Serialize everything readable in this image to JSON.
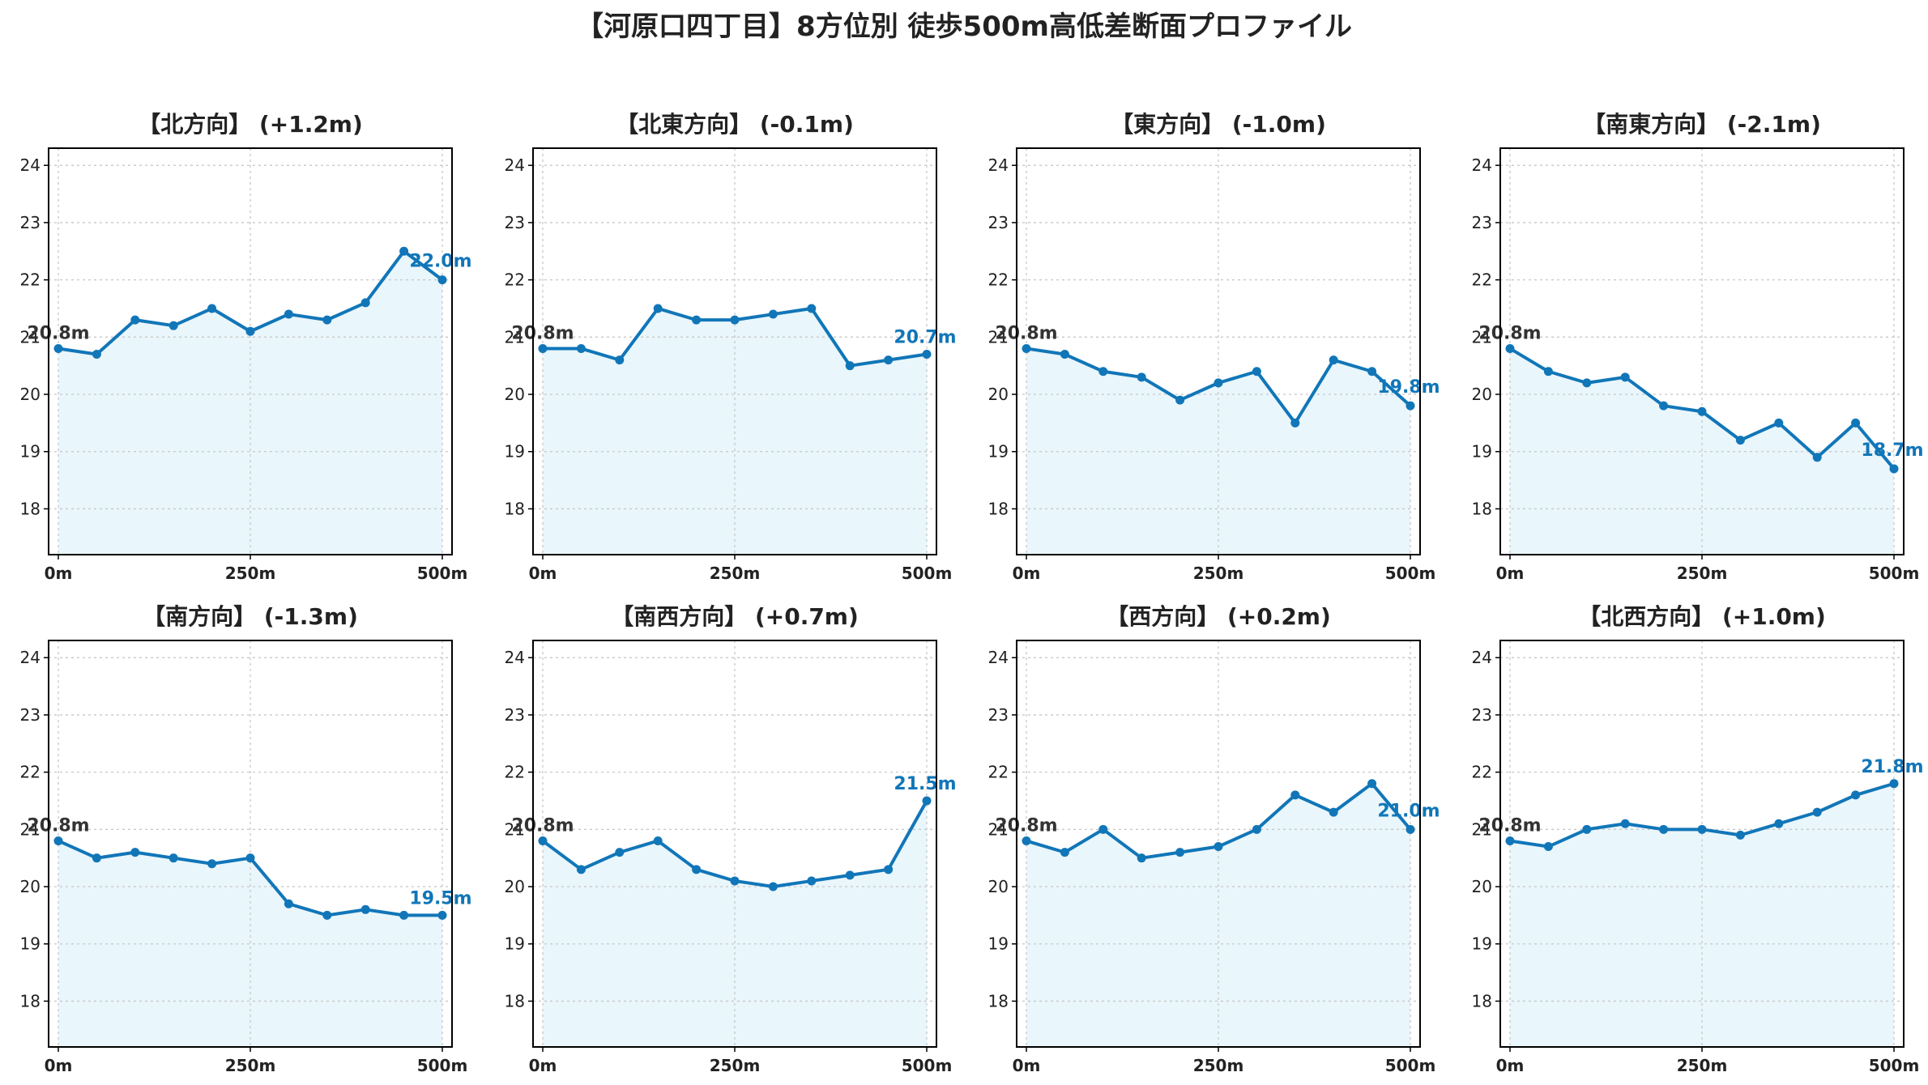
{
  "title": "【河原口四丁目】8方位別 徒歩500m高低差断面プロファイル",
  "colors": {
    "line": "#1176b8",
    "area": "#e8f5fb",
    "start_label": "#333333"
  },
  "chart_data": [
    {
      "type": "line",
      "title": "【北方向】 (+1.2m)",
      "x": [
        0,
        50,
        100,
        150,
        200,
        250,
        300,
        350,
        400,
        450,
        500
      ],
      "values": [
        20.8,
        20.7,
        21.3,
        21.2,
        21.5,
        21.1,
        21.4,
        21.3,
        21.6,
        22.5,
        22.0
      ],
      "start_label": "20.8m",
      "end_label": "22.0m",
      "xticks": [
        "0m",
        "250m",
        "500m"
      ],
      "yticks": [
        18,
        19,
        20,
        21,
        22,
        23,
        24
      ],
      "xlim": [
        0,
        500
      ],
      "ylim": [
        17.2,
        24.3
      ],
      "grid": true
    },
    {
      "type": "line",
      "title": "【北東方向】 (-0.1m)",
      "x": [
        0,
        50,
        100,
        150,
        200,
        250,
        300,
        350,
        400,
        450,
        500
      ],
      "values": [
        20.8,
        20.8,
        20.6,
        21.5,
        21.3,
        21.3,
        21.4,
        21.5,
        20.5,
        20.6,
        20.7
      ],
      "start_label": "20.8m",
      "end_label": "20.7m",
      "xticks": [
        "0m",
        "250m",
        "500m"
      ],
      "yticks": [
        18,
        19,
        20,
        21,
        22,
        23,
        24
      ],
      "xlim": [
        0,
        500
      ],
      "ylim": [
        17.2,
        24.3
      ],
      "grid": true
    },
    {
      "type": "line",
      "title": "【東方向】 (-1.0m)",
      "x": [
        0,
        50,
        100,
        150,
        200,
        250,
        300,
        350,
        400,
        450,
        500
      ],
      "values": [
        20.8,
        20.7,
        20.4,
        20.3,
        19.9,
        20.2,
        20.4,
        19.5,
        20.6,
        20.4,
        19.8
      ],
      "start_label": "20.8m",
      "end_label": "19.8m",
      "xticks": [
        "0m",
        "250m",
        "500m"
      ],
      "yticks": [
        18,
        19,
        20,
        21,
        22,
        23,
        24
      ],
      "xlim": [
        0,
        500
      ],
      "ylim": [
        17.2,
        24.3
      ],
      "grid": true
    },
    {
      "type": "line",
      "title": "【南東方向】 (-2.1m)",
      "x": [
        0,
        50,
        100,
        150,
        200,
        250,
        300,
        350,
        400,
        450,
        500
      ],
      "values": [
        20.8,
        20.4,
        20.2,
        20.3,
        19.8,
        19.7,
        19.2,
        19.5,
        18.9,
        19.5,
        18.7
      ],
      "start_label": "20.8m",
      "end_label": "18.7m",
      "xticks": [
        "0m",
        "250m",
        "500m"
      ],
      "yticks": [
        18,
        19,
        20,
        21,
        22,
        23,
        24
      ],
      "xlim": [
        0,
        500
      ],
      "ylim": [
        17.2,
        24.3
      ],
      "grid": true
    },
    {
      "type": "line",
      "title": "【南方向】 (-1.3m)",
      "x": [
        0,
        50,
        100,
        150,
        200,
        250,
        300,
        350,
        400,
        450,
        500
      ],
      "values": [
        20.8,
        20.5,
        20.6,
        20.5,
        20.4,
        20.5,
        19.7,
        19.5,
        19.6,
        19.5,
        19.5
      ],
      "start_label": "20.8m",
      "end_label": "19.5m",
      "xticks": [
        "0m",
        "250m",
        "500m"
      ],
      "yticks": [
        18,
        19,
        20,
        21,
        22,
        23,
        24
      ],
      "xlim": [
        0,
        500
      ],
      "ylim": [
        17.2,
        24.3
      ],
      "grid": true
    },
    {
      "type": "line",
      "title": "【南西方向】 (+0.7m)",
      "x": [
        0,
        50,
        100,
        150,
        200,
        250,
        300,
        350,
        400,
        450,
        500
      ],
      "values": [
        20.8,
        20.3,
        20.6,
        20.8,
        20.3,
        20.1,
        20.0,
        20.1,
        20.2,
        20.3,
        21.5
      ],
      "start_label": "20.8m",
      "end_label": "21.5m",
      "xticks": [
        "0m",
        "250m",
        "500m"
      ],
      "yticks": [
        18,
        19,
        20,
        21,
        22,
        23,
        24
      ],
      "xlim": [
        0,
        500
      ],
      "ylim": [
        17.2,
        24.3
      ],
      "grid": true
    },
    {
      "type": "line",
      "title": "【西方向】 (+0.2m)",
      "x": [
        0,
        50,
        100,
        150,
        200,
        250,
        300,
        350,
        400,
        450,
        500
      ],
      "values": [
        20.8,
        20.6,
        21.0,
        20.5,
        20.6,
        20.7,
        21.0,
        21.6,
        21.3,
        21.8,
        21.0
      ],
      "start_label": "20.8m",
      "end_label": "21.0m",
      "xticks": [
        "0m",
        "250m",
        "500m"
      ],
      "yticks": [
        18,
        19,
        20,
        21,
        22,
        23,
        24
      ],
      "xlim": [
        0,
        500
      ],
      "ylim": [
        17.2,
        24.3
      ],
      "grid": true
    },
    {
      "type": "line",
      "title": "【北西方向】 (+1.0m)",
      "x": [
        0,
        50,
        100,
        150,
        200,
        250,
        300,
        350,
        400,
        450,
        500
      ],
      "values": [
        20.8,
        20.7,
        21.0,
        21.1,
        21.0,
        21.0,
        20.9,
        21.1,
        21.3,
        21.6,
        21.8
      ],
      "start_label": "20.8m",
      "end_label": "21.8m",
      "xticks": [
        "0m",
        "250m",
        "500m"
      ],
      "yticks": [
        18,
        19,
        20,
        21,
        22,
        23,
        24
      ],
      "xlim": [
        0,
        500
      ],
      "ylim": [
        17.2,
        24.3
      ],
      "grid": true
    }
  ]
}
